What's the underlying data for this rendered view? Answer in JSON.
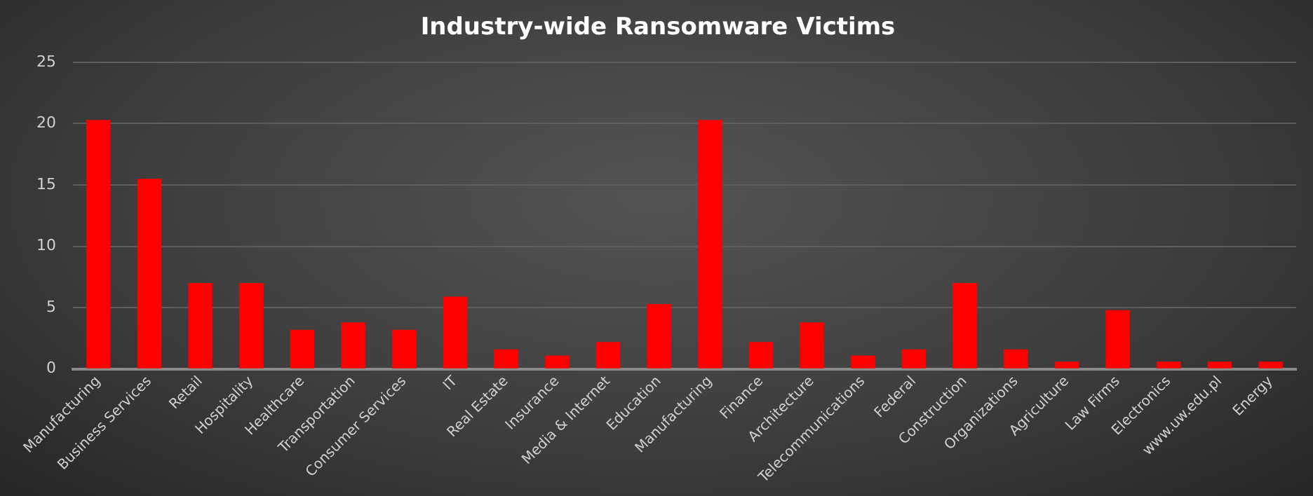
{
  "chart_data": {
    "type": "bar",
    "title": "Industry-wide Ransomware Victims",
    "categories": [
      "Manufacturing",
      "Business Services",
      "Retail",
      "Hospitality",
      "Healthcare",
      "Transportation",
      "Consumer Services",
      "IT",
      "Real Estate",
      "Insurance",
      "Media & Internet",
      "Education",
      "Manufacturing",
      "Finance",
      "Architecture",
      "Telecommunications",
      "Federal",
      "Construction",
      "Organizations",
      "Agriculture",
      "Law Firms",
      "Electronics",
      "www.uw.edu.pl",
      "Energy"
    ],
    "values": [
      20.3,
      15.5,
      7.0,
      7.0,
      3.2,
      3.8,
      3.2,
      5.9,
      1.6,
      1.1,
      2.2,
      5.3,
      20.3,
      2.2,
      3.8,
      1.1,
      1.6,
      7.0,
      1.6,
      0.6,
      4.8,
      0.6,
      0.6,
      0.6
    ],
    "color": "#ff0000",
    "ylim": [
      0,
      25
    ],
    "yticks": [
      0,
      5,
      10,
      15,
      20,
      25
    ],
    "grid": "y",
    "legend": false
  }
}
